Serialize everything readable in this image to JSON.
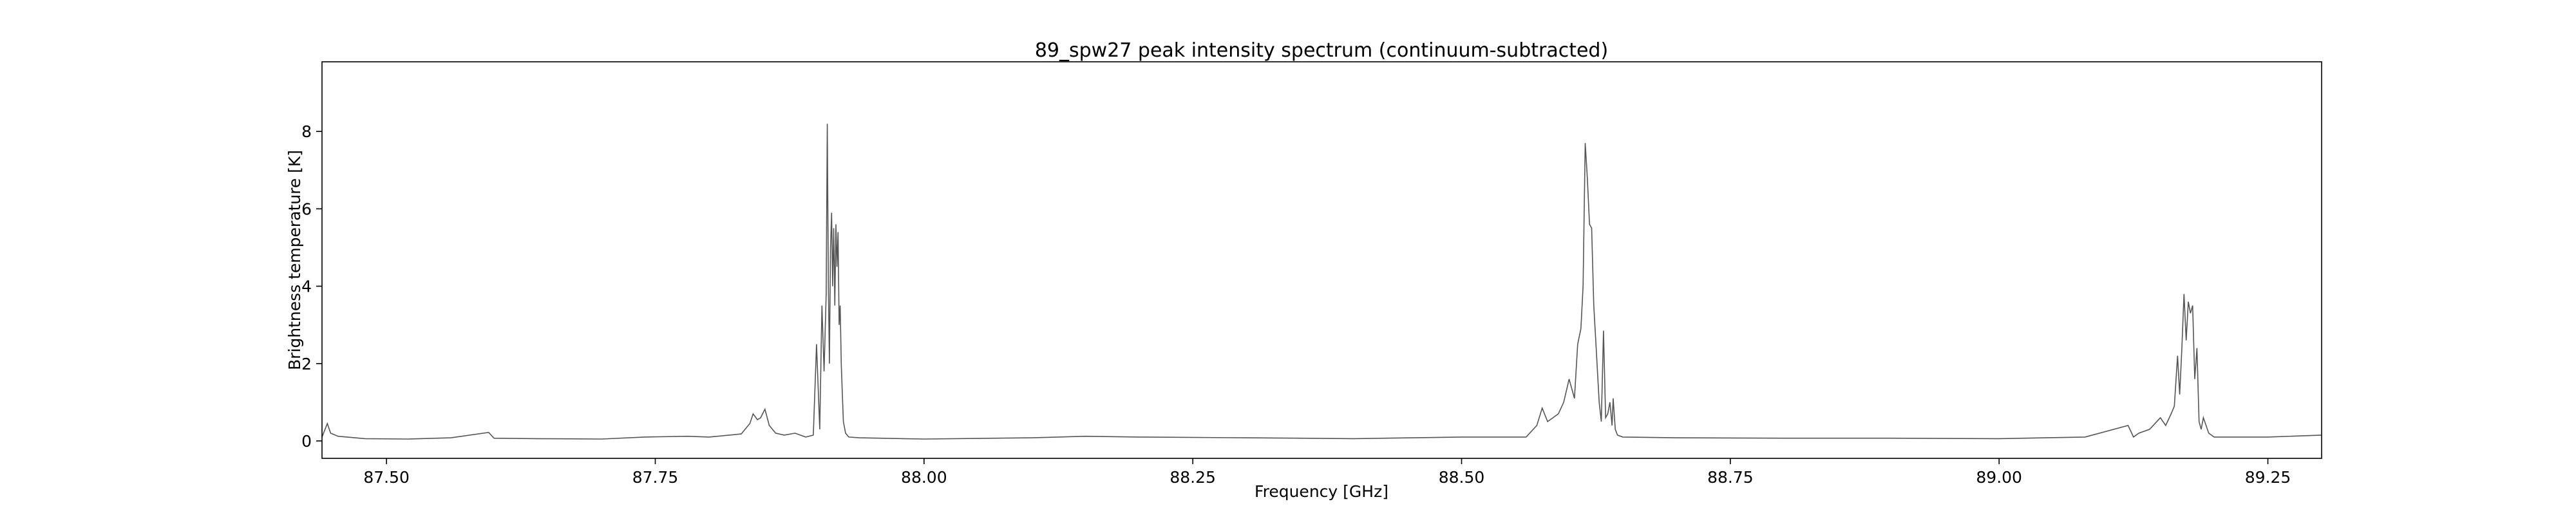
{
  "chart_data": {
    "type": "line",
    "title": "89_spw27 peak intensity spectrum (continuum-subtracted)",
    "xlabel": "Frequency [GHz]",
    "ylabel": "Brightness temperature [K]",
    "xlim": [
      87.44,
      89.3
    ],
    "ylim": [
      -0.45,
      9.8
    ],
    "x_ticks": [
      87.5,
      87.75,
      88.0,
      88.25,
      88.5,
      88.75,
      89.0,
      89.25
    ],
    "x_tick_labels": [
      "87.50",
      "87.75",
      "88.00",
      "88.25",
      "88.50",
      "88.75",
      "89.00",
      "89.25"
    ],
    "y_ticks": [
      0,
      2,
      4,
      6,
      8
    ],
    "y_tick_labels": [
      "0",
      "2",
      "4",
      "6",
      "8"
    ],
    "grid": false,
    "legend": "none",
    "line_color": "#555555",
    "series": [
      {
        "x": [
          87.44,
          87.445,
          87.448,
          87.455,
          87.48,
          87.52,
          87.56,
          87.595,
          87.6,
          87.64,
          87.7,
          87.74,
          87.78,
          87.8,
          87.83,
          87.838,
          87.841,
          87.845,
          87.848,
          87.852,
          87.856,
          87.862,
          87.87,
          87.88,
          87.89,
          87.897,
          87.9,
          87.903,
          87.905,
          87.907,
          87.909,
          87.91,
          87.911,
          87.912,
          87.913,
          87.914,
          87.915,
          87.916,
          87.917,
          87.918,
          87.919,
          87.92,
          87.921,
          87.922,
          87.923,
          87.924,
          87.925,
          87.927,
          87.93,
          87.94,
          88.0,
          88.1,
          88.15,
          88.2,
          88.3,
          88.4,
          88.5,
          88.56,
          88.57,
          88.575,
          88.58,
          88.59,
          88.595,
          88.6,
          88.605,
          88.608,
          88.611,
          88.613,
          88.615,
          88.617,
          88.619,
          88.621,
          88.623,
          88.625,
          88.628,
          88.63,
          88.632,
          88.634,
          88.636,
          88.638,
          88.64,
          88.641,
          88.643,
          88.645,
          88.65,
          88.7,
          88.8,
          88.9,
          89.0,
          89.08,
          89.12,
          89.125,
          89.13,
          89.14,
          89.15,
          89.155,
          89.16,
          89.163,
          89.166,
          89.168,
          89.17,
          89.172,
          89.174,
          89.176,
          89.178,
          89.18,
          89.182,
          89.184,
          89.186,
          89.188,
          89.19,
          89.195,
          89.2,
          89.25,
          89.3
        ],
        "y": [
          0.1,
          0.45,
          0.2,
          0.12,
          0.06,
          0.05,
          0.08,
          0.22,
          0.07,
          0.06,
          0.05,
          0.1,
          0.12,
          0.1,
          0.18,
          0.45,
          0.7,
          0.55,
          0.6,
          0.82,
          0.4,
          0.2,
          0.15,
          0.2,
          0.1,
          0.15,
          2.5,
          0.3,
          3.5,
          1.8,
          3.8,
          8.2,
          4.0,
          2.0,
          5.0,
          5.9,
          4.0,
          5.5,
          3.5,
          5.6,
          4.5,
          5.4,
          3.0,
          3.5,
          2.0,
          1.2,
          0.5,
          0.2,
          0.1,
          0.08,
          0.05,
          0.08,
          0.12,
          0.1,
          0.08,
          0.06,
          0.1,
          0.1,
          0.4,
          0.85,
          0.5,
          0.7,
          1.0,
          1.6,
          1.1,
          2.5,
          2.9,
          4.0,
          7.7,
          6.8,
          5.6,
          5.5,
          3.5,
          2.5,
          1.0,
          0.5,
          2.85,
          0.6,
          0.7,
          1.0,
          0.4,
          1.1,
          0.3,
          0.15,
          0.1,
          0.08,
          0.07,
          0.07,
          0.06,
          0.1,
          0.4,
          0.1,
          0.2,
          0.3,
          0.6,
          0.4,
          0.7,
          0.9,
          2.2,
          1.2,
          2.4,
          3.8,
          2.6,
          3.6,
          3.3,
          3.5,
          1.6,
          2.4,
          0.5,
          0.3,
          0.6,
          0.2,
          0.1,
          0.1,
          0.15
        ]
      }
    ]
  }
}
